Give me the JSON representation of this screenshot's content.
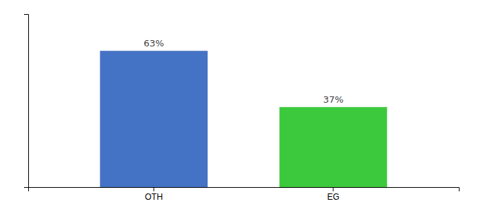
{
  "chart_data": {
    "type": "bar",
    "categories": [
      "OTH",
      "EG"
    ],
    "values": [
      63,
      37
    ],
    "value_labels": [
      "63%",
      "37%"
    ],
    "colors": [
      "#4472C4",
      "#3DC93D"
    ],
    "ylim": [
      0,
      80
    ],
    "data_labels": true,
    "tick_labels": "x",
    "grid": false
  }
}
